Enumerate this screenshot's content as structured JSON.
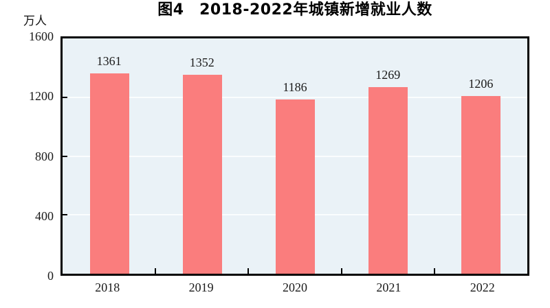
{
  "chart_data": {
    "type": "bar",
    "title": "图4　2018-2022年城镇新增就业人数",
    "unit_label": "万人",
    "categories": [
      "2018",
      "2019",
      "2020",
      "2021",
      "2022"
    ],
    "values": [
      1361,
      1352,
      1186,
      1269,
      1206
    ],
    "ylim": [
      0,
      1600
    ],
    "yticks": [
      0,
      400,
      800,
      1200,
      1600
    ],
    "grid": "horizontal",
    "legend": "none",
    "colors": {
      "bar": "#FA7D7D",
      "plot_background": "#EAF2F7",
      "gridline": "#FAFDFE",
      "axis": "#000000",
      "text": "#1a1a1a"
    }
  }
}
